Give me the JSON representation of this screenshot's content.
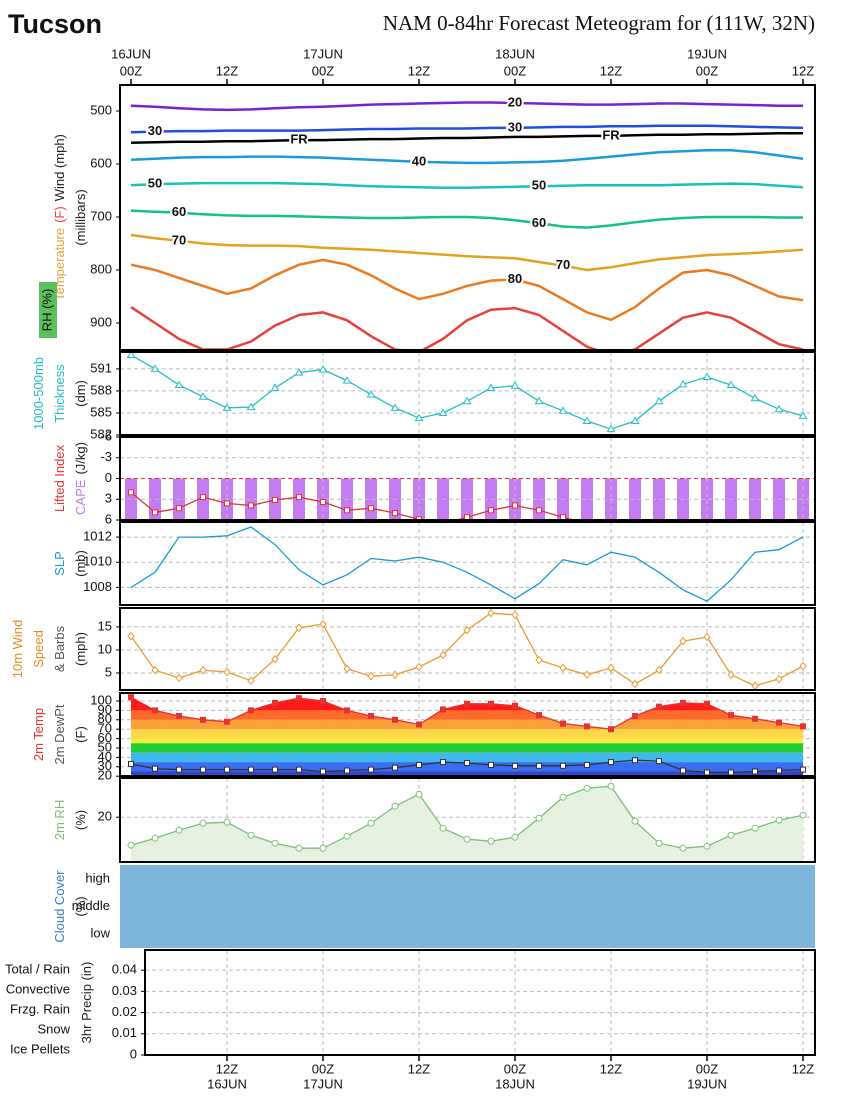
{
  "header": {
    "location": "Tucson",
    "title": "NAM 0-84hr Forecast Meteogram for (111W, 32N)"
  },
  "x_axis": {
    "xlim": [
      -1.375,
      85.5
    ],
    "x": [
      0,
      3,
      6,
      9,
      12,
      15,
      18,
      21,
      24,
      27,
      30,
      33,
      36,
      39,
      42,
      45,
      48,
      51,
      54,
      57,
      60,
      63,
      66,
      69,
      72,
      75,
      78,
      81,
      84
    ],
    "top_ticks": [
      {
        "value": 0,
        "label": "00Z"
      },
      {
        "value": 12,
        "label": "12Z"
      },
      {
        "value": 24,
        "label": "00Z"
      },
      {
        "value": 36,
        "label": "12Z"
      },
      {
        "value": 48,
        "label": "00Z"
      },
      {
        "value": 60,
        "label": "12Z"
      },
      {
        "value": 72,
        "label": "00Z"
      },
      {
        "value": 84,
        "label": "12Z"
      }
    ],
    "top_dates": [
      {
        "value": 0,
        "label": "16JUN"
      },
      {
        "value": 24,
        "label": "17JUN"
      },
      {
        "value": 48,
        "label": "18JUN"
      },
      {
        "value": 72,
        "label": "19JUN"
      }
    ],
    "bottom_ticks": [
      {
        "value": 12,
        "label": "12Z"
      },
      {
        "value": 24,
        "label": "00Z"
      },
      {
        "value": 36,
        "label": "12Z"
      },
      {
        "value": 48,
        "label": "00Z"
      },
      {
        "value": 60,
        "label": "12Z"
      },
      {
        "value": 72,
        "label": "00Z"
      },
      {
        "value": 84,
        "label": "12Z"
      }
    ],
    "bottom_dates": [
      {
        "value": 12,
        "label": "16JUN"
      },
      {
        "value": 24,
        "label": "17JUN"
      },
      {
        "value": 48,
        "label": "18JUN"
      },
      {
        "value": 72,
        "label": "19JUN"
      }
    ]
  },
  "chart_data": [
    {
      "type": "contour",
      "ylim": [
        951,
        451
      ],
      "yticks": [
        500,
        600,
        700,
        800,
        900
      ],
      "axis_labels": [
        [
          {
            "text": "Temperature",
            "color": "#e8a23a"
          },
          {
            "text": "(F)",
            "color": "#e6443a"
          },
          {
            "text": "Wind (mph)",
            "color": "#222"
          }
        ],
        [
          {
            "text": "(millibars)",
            "color": "#222"
          }
        ]
      ],
      "rh_label": "RH (%)",
      "rh_color": "#5cc05c",
      "series": [
        {
          "name": "20",
          "color": "#7e1fd0",
          "values": [
            490,
            492,
            495,
            497,
            498,
            497,
            495,
            493,
            492,
            490,
            488,
            487,
            486,
            485,
            484,
            484,
            485,
            486,
            487,
            488,
            488,
            487,
            486,
            486,
            487,
            488,
            489,
            490,
            490
          ]
        },
        {
          "name": "30",
          "color": "#1f4fe0",
          "values": [
            540,
            539,
            538,
            538,
            537,
            537,
            537,
            537,
            536,
            535,
            534,
            534,
            533,
            533,
            533,
            532,
            532,
            531,
            530,
            530,
            529,
            529,
            528,
            528,
            528,
            529,
            530,
            531,
            532
          ]
        },
        {
          "name": "FR",
          "color": "#000000",
          "values": [
            560,
            559,
            558,
            558,
            557,
            557,
            556,
            555,
            555,
            554,
            553,
            553,
            552,
            551,
            551,
            550,
            549,
            549,
            548,
            547,
            547,
            546,
            545,
            545,
            544,
            544,
            543,
            542,
            542
          ]
        },
        {
          "name": "40",
          "color": "#1a9ae0",
          "values": [
            592,
            590,
            588,
            587,
            587,
            586,
            586,
            587,
            588,
            590,
            592,
            594,
            596,
            597,
            598,
            598,
            597,
            596,
            594,
            590,
            586,
            582,
            578,
            576,
            574,
            574,
            578,
            584,
            590
          ]
        },
        {
          "name": "50",
          "color": "#19c0c0",
          "values": [
            640,
            638,
            637,
            636,
            636,
            636,
            636,
            637,
            638,
            640,
            642,
            643,
            644,
            645,
            645,
            644,
            643,
            642,
            641,
            640,
            640,
            640,
            640,
            639,
            638,
            637,
            638,
            641,
            644
          ]
        },
        {
          "name": "60",
          "color": "#16c08a",
          "values": [
            688,
            690,
            692,
            695,
            697,
            698,
            698,
            699,
            700,
            701,
            702,
            702,
            701,
            700,
            700,
            702,
            706,
            712,
            718,
            720,
            716,
            710,
            705,
            702,
            700,
            700,
            700,
            701,
            701
          ]
        },
        {
          "name": "70",
          "color": "#e6a020",
          "values": [
            734,
            740,
            745,
            750,
            753,
            754,
            754,
            755,
            758,
            760,
            762,
            765,
            768,
            771,
            774,
            776,
            778,
            785,
            792,
            800,
            795,
            787,
            780,
            776,
            772,
            770,
            768,
            765,
            762
          ]
        },
        {
          "name": "80",
          "color": "#ec7a20",
          "values": [
            790,
            800,
            815,
            830,
            845,
            835,
            810,
            790,
            781,
            790,
            810,
            835,
            855,
            845,
            830,
            820,
            818,
            830,
            855,
            880,
            894,
            870,
            835,
            805,
            800,
            810,
            830,
            850,
            857
          ]
        },
        {
          "color": "#e8403a",
          "values": [
            870,
            900,
            930,
            950,
            950,
            935,
            905,
            885,
            880,
            895,
            925,
            950,
            955,
            930,
            895,
            875,
            872,
            885,
            915,
            945,
            960,
            950,
            920,
            890,
            880,
            890,
            915,
            940,
            950
          ]
        }
      ]
    },
    {
      "type": "line",
      "marker": "triangle",
      "grid": true,
      "ylim": [
        582,
        593.3
      ],
      "yticks": [
        582,
        585,
        588,
        591
      ],
      "axis_labels": [
        [
          {
            "text": "1000-500mb",
            "color": "#20c0c0"
          }
        ],
        [
          {
            "text": "Thickness",
            "color": "#20c0c0"
          }
        ],
        [
          {
            "text": "(dm)",
            "color": "#222"
          }
        ]
      ],
      "series": [
        {
          "color": "#20c0c0",
          "values": [
            592.9,
            591,
            588.8,
            587.2,
            585.7,
            585.8,
            588.4,
            590.5,
            590.9,
            589.4,
            587.5,
            585.7,
            584.3,
            585,
            586.6,
            588.4,
            588.7,
            586.6,
            585.3,
            583.9,
            582.8,
            583.9,
            586.6,
            588.9,
            589.9,
            588.8,
            587,
            585.5,
            584.6
          ]
        }
      ]
    },
    {
      "type": "line",
      "marker": "square",
      "grid": true,
      "ylim": [
        6,
        -6
      ],
      "yticks": [
        -6,
        -3,
        0,
        3,
        6
      ],
      "zero_line_color": "#e33333",
      "stripe_color": "#c57cf2",
      "axis_labels": [
        [
          {
            "text": "Lifted Index",
            "color": "#e33333"
          }
        ],
        [
          {
            "text": "CAPE",
            "color": "#c57cf2"
          },
          {
            "text": "(J/kg)",
            "color": "#222"
          }
        ]
      ],
      "series": [
        {
          "color": "#e33333",
          "values": [
            2.0,
            4.9,
            4.3,
            2.7,
            3.6,
            3.9,
            3.1,
            2.7,
            3.4,
            4.6,
            4.3,
            5.0,
            5.9,
            6.5,
            5.6,
            4.6,
            3.9,
            4.6,
            5.6,
            6.5,
            null,
            null,
            null,
            null,
            null,
            null,
            null,
            null,
            null
          ]
        }
      ]
    },
    {
      "type": "line",
      "grid": true,
      "ylim": [
        1006.6,
        1013.2
      ],
      "yticks": [
        1008,
        1010,
        1012
      ],
      "axis_labels": [
        [
          {
            "text": "SLP",
            "color": "#1a9ad6"
          }
        ],
        [
          {
            "text": "(mb)",
            "color": "#222"
          }
        ]
      ],
      "series": [
        {
          "color": "#1a9ad6",
          "values": [
            1008,
            1009.2,
            1012,
            1012,
            1012.1,
            1012.8,
            1011.4,
            1009.4,
            1008.2,
            1009,
            1010.3,
            1010.1,
            1010.4,
            1010,
            1009.2,
            1008.2,
            1007.1,
            1008.3,
            1010.2,
            1009.8,
            1010.8,
            1010.4,
            1009.2,
            1007.8,
            1006.9,
            1008.6,
            1010.8,
            1011,
            1012
          ]
        }
      ]
    },
    {
      "type": "line",
      "marker": "diamond",
      "grid": true,
      "ylim": [
        1.3,
        19.1
      ],
      "yticks": [
        5,
        10,
        15
      ],
      "axis_labels": [
        [
          {
            "text": "10m Wind",
            "color": "#ec8a20"
          }
        ],
        [
          {
            "text": "Speed",
            "color": "#ec8a20"
          }
        ],
        [
          {
            "text": "& Barbs",
            "color": "#555"
          }
        ],
        [
          {
            "text": "(mph)",
            "color": "#222"
          }
        ]
      ],
      "series": [
        {
          "color": "#ec9a30",
          "values": [
            13,
            5.6,
            3.9,
            5.6,
            5.2,
            3.3,
            8,
            14.8,
            15.6,
            5.9,
            4.3,
            4.6,
            6.3,
            8.9,
            14.3,
            18,
            17.6,
            7.8,
            6.1,
            4.6,
            6.1,
            2.6,
            5.6,
            11.9,
            12.8,
            4.6,
            2.2,
            3.7,
            6.5
          ]
        }
      ]
    },
    {
      "type": "temp",
      "grid": true,
      "ylim": [
        20.2,
        108.5
      ],
      "yticks": [
        20,
        30,
        40,
        50,
        60,
        70,
        80,
        90,
        100
      ],
      "axis_labels": [
        [
          {
            "text": "2m Temp",
            "color": "#e33333"
          }
        ],
        [
          {
            "text": "2m DewPt",
            "color": "#555"
          }
        ],
        [
          {
            "text": "(F)",
            "color": "#222"
          }
        ]
      ],
      "color_bands": [
        {
          "min": 90,
          "color": "#ff1a1a"
        },
        {
          "min": 80,
          "color": "#ff6a2a"
        },
        {
          "min": 70,
          "color": "#ff9f3a"
        },
        {
          "min": 60,
          "color": "#ffd84a"
        },
        {
          "min": 55,
          "color": "#f2f03c"
        },
        {
          "min": 45,
          "color": "#22cc33"
        },
        {
          "min": 35,
          "color": "#3fb8f0"
        },
        {
          "min": 25,
          "color": "#3a6ef0"
        },
        {
          "min": 20,
          "color": "#3344cc"
        }
      ],
      "series": [
        {
          "color": "#e33333",
          "values": [
            104,
            90,
            84,
            80,
            78,
            90,
            98,
            103,
            100,
            90,
            84,
            80,
            75,
            91,
            97,
            97,
            95,
            85,
            76,
            73,
            70,
            84,
            94,
            98,
            97,
            85,
            81,
            77,
            73
          ]
        },
        {
          "color": "#333333",
          "values": [
            33,
            28,
            27,
            27,
            27,
            27,
            27,
            27,
            25,
            26,
            27,
            29,
            32,
            35,
            34,
            32,
            31,
            31,
            31,
            32,
            35,
            37,
            36,
            26,
            24,
            24,
            25,
            26,
            27
          ]
        }
      ]
    },
    {
      "type": "area",
      "grid": true,
      "ylim": [
        8.8,
        29.8
      ],
      "yticks": [
        20
      ],
      "fill_color": "#e6f1e2",
      "axis_labels": [
        [
          {
            "text": "2m RH",
            "color": "#7cbf7c"
          }
        ],
        [
          {
            "text": "(%)",
            "color": "#222"
          }
        ]
      ],
      "series": [
        {
          "color": "#7cbf7c",
          "values": [
            13,
            14.75,
            16.75,
            18.5,
            18.75,
            15.5,
            13.5,
            12.25,
            12.25,
            15.25,
            18.5,
            22.75,
            25.75,
            17.25,
            14.5,
            14,
            15,
            19.75,
            25,
            27.25,
            27.75,
            19,
            13.5,
            12.25,
            12.75,
            15.5,
            17.25,
            19.25,
            20.5
          ]
        }
      ]
    },
    {
      "type": "cloud",
      "color": "#7fb6dc",
      "rows": [
        "high",
        "middle",
        "low"
      ],
      "axis_labels": [
        [
          {
            "text": "Cloud Cover",
            "color": "#3a80c0"
          }
        ],
        [
          {
            "text": "(%)",
            "color": "#222"
          }
        ]
      ]
    },
    {
      "type": "precip",
      "grid": true,
      "ylim": [
        0,
        0.0495
      ],
      "yticks": [
        0,
        0.01,
        0.02,
        0.03,
        0.04
      ],
      "axis_labels": [
        [
          {
            "text": "3hr Precip (in)",
            "color": "#222"
          }
        ]
      ],
      "legend": [
        {
          "name": "Total / Rain",
          "color": "#33bb33"
        },
        {
          "name": "Convective",
          "color": "#e22222"
        },
        {
          "name": "Frzg. Rain",
          "color": "#ee9922"
        },
        {
          "name": "Snow",
          "color": "#4444ee"
        },
        {
          "name": "Ice Pellets",
          "color": "#22cccc"
        }
      ]
    }
  ]
}
